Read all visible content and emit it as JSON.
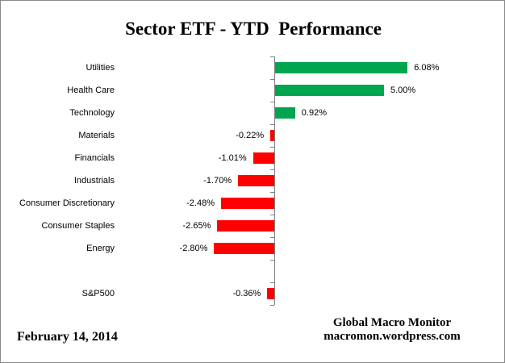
{
  "chart_data": {
    "type": "bar",
    "orientation": "horizontal",
    "title": "Sector ETF - YTD  Performance",
    "xlabel": "",
    "ylabel": "",
    "value_unit": "percent",
    "legend": "none",
    "grid": false,
    "categories": [
      "Utilities",
      "Health Care",
      "Technology",
      "Materials",
      "Financials",
      "Industrials",
      "Consumer Discretionary",
      "Consumer Staples",
      "Energy",
      "",
      "S&P500"
    ],
    "values": [
      6.08,
      5.0,
      0.92,
      -0.22,
      -1.01,
      -1.7,
      -2.48,
      -2.65,
      -2.8,
      null,
      -0.36
    ],
    "rows": [
      {
        "label": "Utilities",
        "value": 6.08,
        "display": "6.08%"
      },
      {
        "label": "Health Care",
        "value": 5.0,
        "display": "5.00%"
      },
      {
        "label": "Technology",
        "value": 0.92,
        "display": "0.92%"
      },
      {
        "label": "Materials",
        "value": -0.22,
        "display": "-0.22%"
      },
      {
        "label": "Financials",
        "value": -1.01,
        "display": "-1.01%"
      },
      {
        "label": "Industrials",
        "value": -1.7,
        "display": "-1.70%"
      },
      {
        "label": "Consumer Discretionary",
        "value": -2.48,
        "display": "-2.48%"
      },
      {
        "label": "Consumer Staples",
        "value": -2.65,
        "display": "-2.65%"
      },
      {
        "label": "Energy",
        "value": -2.8,
        "display": "-2.80%"
      },
      {
        "label": "",
        "value": null,
        "display": ""
      },
      {
        "label": "S&P500",
        "value": -0.36,
        "display": "-0.36%"
      }
    ],
    "colors": {
      "positive": "#00A550",
      "negative": "#FF0000",
      "axis": "#808080"
    }
  },
  "footer": {
    "date": "February 14, 2014",
    "credit_line1": "Global Macro Monitor",
    "credit_line2": "macromon.wordpress.com"
  }
}
